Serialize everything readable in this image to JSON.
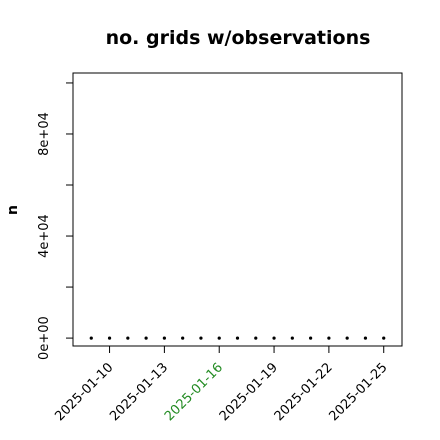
{
  "chart_data": {
    "type": "scatter",
    "title": "no. grids w/observations",
    "y_label": "n",
    "x": [
      "2025-01-09",
      "2025-01-10",
      "2025-01-11",
      "2025-01-12",
      "2025-01-13",
      "2025-01-14",
      "2025-01-15",
      "2025-01-16",
      "2025-01-17",
      "2025-01-18",
      "2025-01-19",
      "2025-01-20",
      "2025-01-21",
      "2025-01-22",
      "2025-01-23",
      "2025-01-24",
      "2025-01-25"
    ],
    "values": [
      0,
      0,
      0,
      0,
      0,
      0,
      0,
      0,
      0,
      0,
      0,
      0,
      0,
      0,
      0,
      0,
      0
    ],
    "color": "#000000",
    "xlim": [
      "2025-01-08",
      "2025-01-26"
    ],
    "xticks": [
      "2025-01-10",
      "2025-01-13",
      "2025-01-16",
      "2025-01-19",
      "2025-01-22",
      "2025-01-25"
    ],
    "xtick_colors": [
      "#000000",
      "#000000",
      "#228b22",
      "#000000",
      "#000000",
      "#000000"
    ],
    "ylim": [
      -3100,
      103900
    ],
    "yticks": [
      {
        "value": 0,
        "label": "0e+00"
      },
      {
        "value": 20000,
        "label": null
      },
      {
        "value": 40000,
        "label": "4e+04"
      },
      {
        "value": 60000,
        "label": null
      },
      {
        "value": 80000,
        "label": "8e+04"
      },
      {
        "value": 100000,
        "label": null
      }
    ]
  }
}
